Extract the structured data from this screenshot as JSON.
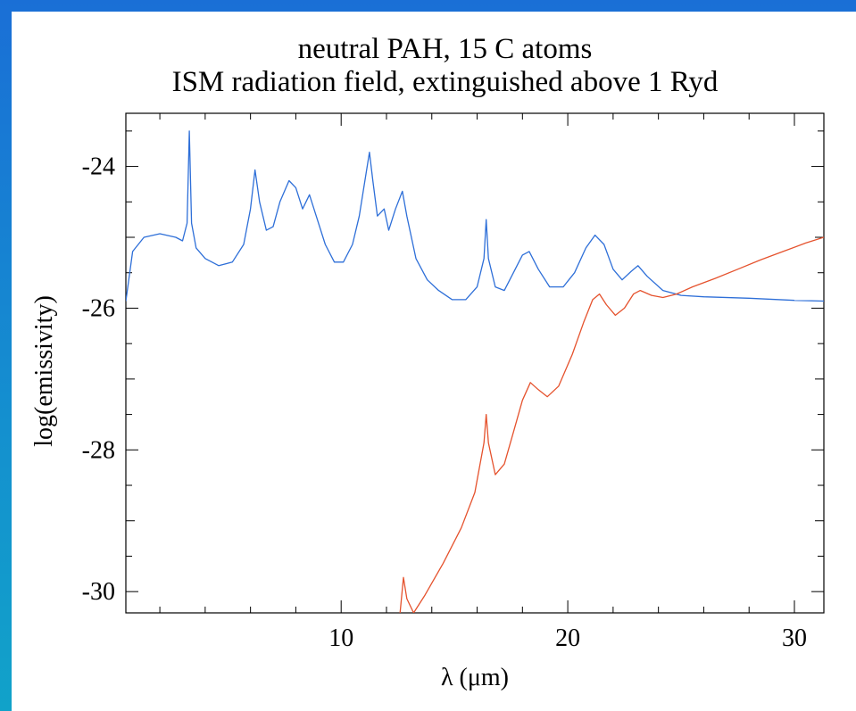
{
  "chart_data": {
    "type": "line",
    "title": "neutral PAH, 15 C atoms",
    "subtitle": "ISM radiation field, extinguished above 1 Ryd",
    "xlabel": "λ (μm)",
    "ylabel": "log(emissivity)",
    "xlim": [
      0.5,
      31.3
    ],
    "ylim": [
      -30.3,
      -23.25
    ],
    "x_ticks": [
      10,
      20,
      30
    ],
    "y_ticks": [
      -24,
      -26,
      -28,
      -30
    ],
    "grid": false,
    "series": [
      {
        "color": "#2e6fd8",
        "points": [
          [
            0.5,
            -25.9
          ],
          [
            0.8,
            -25.2
          ],
          [
            1.3,
            -25.0
          ],
          [
            2.0,
            -24.95
          ],
          [
            2.7,
            -25.0
          ],
          [
            3.0,
            -25.05
          ],
          [
            3.2,
            -24.8
          ],
          [
            3.3,
            -23.5
          ],
          [
            3.4,
            -24.8
          ],
          [
            3.6,
            -25.15
          ],
          [
            4.0,
            -25.3
          ],
          [
            4.6,
            -25.4
          ],
          [
            5.2,
            -25.35
          ],
          [
            5.7,
            -25.1
          ],
          [
            6.0,
            -24.6
          ],
          [
            6.2,
            -24.05
          ],
          [
            6.4,
            -24.5
          ],
          [
            6.7,
            -24.9
          ],
          [
            7.0,
            -24.85
          ],
          [
            7.3,
            -24.5
          ],
          [
            7.7,
            -24.2
          ],
          [
            8.0,
            -24.3
          ],
          [
            8.3,
            -24.6
          ],
          [
            8.6,
            -24.4
          ],
          [
            8.9,
            -24.7
          ],
          [
            9.3,
            -25.1
          ],
          [
            9.7,
            -25.35
          ],
          [
            10.1,
            -25.35
          ],
          [
            10.5,
            -25.1
          ],
          [
            10.8,
            -24.7
          ],
          [
            11.1,
            -24.1
          ],
          [
            11.25,
            -23.8
          ],
          [
            11.4,
            -24.2
          ],
          [
            11.6,
            -24.7
          ],
          [
            11.9,
            -24.6
          ],
          [
            12.1,
            -24.9
          ],
          [
            12.4,
            -24.6
          ],
          [
            12.7,
            -24.35
          ],
          [
            12.9,
            -24.7
          ],
          [
            13.3,
            -25.3
          ],
          [
            13.8,
            -25.6
          ],
          [
            14.3,
            -25.75
          ],
          [
            14.9,
            -25.88
          ],
          [
            15.5,
            -25.88
          ],
          [
            16.0,
            -25.7
          ],
          [
            16.3,
            -25.3
          ],
          [
            16.4,
            -24.75
          ],
          [
            16.5,
            -25.3
          ],
          [
            16.8,
            -25.7
          ],
          [
            17.2,
            -25.75
          ],
          [
            17.6,
            -25.5
          ],
          [
            18.0,
            -25.25
          ],
          [
            18.3,
            -25.2
          ],
          [
            18.7,
            -25.45
          ],
          [
            19.2,
            -25.7
          ],
          [
            19.8,
            -25.7
          ],
          [
            20.3,
            -25.5
          ],
          [
            20.8,
            -25.15
          ],
          [
            21.2,
            -24.97
          ],
          [
            21.6,
            -25.1
          ],
          [
            22.0,
            -25.45
          ],
          [
            22.4,
            -25.6
          ],
          [
            22.8,
            -25.48
          ],
          [
            23.1,
            -25.4
          ],
          [
            23.5,
            -25.55
          ],
          [
            24.2,
            -25.75
          ],
          [
            25.0,
            -25.82
          ],
          [
            26.0,
            -25.84
          ],
          [
            28.0,
            -25.86
          ],
          [
            30.0,
            -25.89
          ],
          [
            31.3,
            -25.9
          ]
        ]
      },
      {
        "color": "#e5522d",
        "points": [
          [
            12.6,
            -30.3
          ],
          [
            12.75,
            -29.8
          ],
          [
            12.9,
            -30.1
          ],
          [
            13.2,
            -30.3
          ],
          [
            13.7,
            -30.05
          ],
          [
            14.5,
            -29.6
          ],
          [
            15.3,
            -29.1
          ],
          [
            15.9,
            -28.6
          ],
          [
            16.3,
            -27.9
          ],
          [
            16.4,
            -27.5
          ],
          [
            16.5,
            -27.9
          ],
          [
            16.8,
            -28.35
          ],
          [
            17.2,
            -28.2
          ],
          [
            17.6,
            -27.75
          ],
          [
            18.0,
            -27.3
          ],
          [
            18.35,
            -27.05
          ],
          [
            18.7,
            -27.15
          ],
          [
            19.1,
            -27.25
          ],
          [
            19.6,
            -27.1
          ],
          [
            20.2,
            -26.65
          ],
          [
            20.7,
            -26.2
          ],
          [
            21.1,
            -25.88
          ],
          [
            21.4,
            -25.8
          ],
          [
            21.7,
            -25.95
          ],
          [
            22.1,
            -26.1
          ],
          [
            22.5,
            -26.0
          ],
          [
            22.9,
            -25.8
          ],
          [
            23.2,
            -25.75
          ],
          [
            23.7,
            -25.82
          ],
          [
            24.2,
            -25.85
          ],
          [
            24.8,
            -25.8
          ],
          [
            25.5,
            -25.7
          ],
          [
            26.5,
            -25.58
          ],
          [
            27.5,
            -25.45
          ],
          [
            28.5,
            -25.32
          ],
          [
            29.5,
            -25.2
          ],
          [
            30.5,
            -25.08
          ],
          [
            31.3,
            -25.0
          ]
        ]
      }
    ]
  }
}
